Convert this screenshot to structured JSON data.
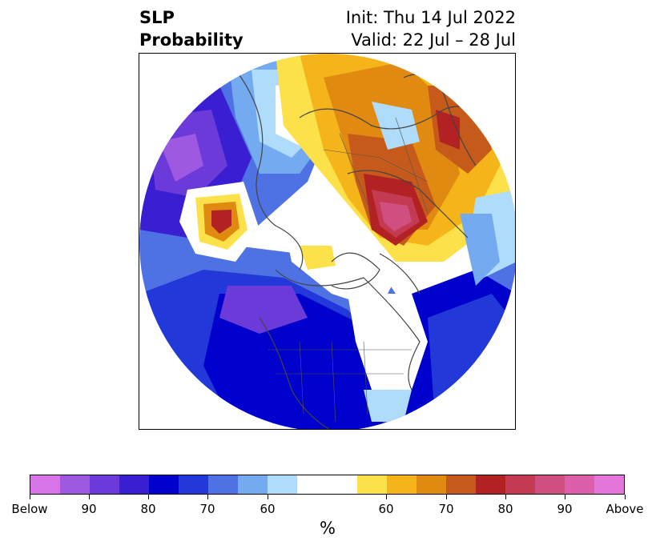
{
  "header": {
    "title_line1": "SLP",
    "title_line2": "Probability",
    "init": "Init: Thu 14 Jul 2022",
    "valid": "Valid: 22 Jul – 28 Jul"
  },
  "colorbar": {
    "unit": "%",
    "tick_labels": [
      "Below",
      "90",
      "80",
      "70",
      "60",
      "60",
      "70",
      "80",
      "90",
      "Above"
    ],
    "colors": [
      "#d674e8",
      "#9e58e2",
      "#6b3ad8",
      "#3a1ed2",
      "#0000cd",
      "#2238d8",
      "#4e72e4",
      "#74aaf0",
      "#aedcfa",
      "#ffffff",
      "#fde14a",
      "#f4b41a",
      "#e08a12",
      "#c65a1a",
      "#b22222",
      "#c43a52",
      "#cf5080",
      "#dd5eaa",
      "#e476dc"
    ]
  }
}
